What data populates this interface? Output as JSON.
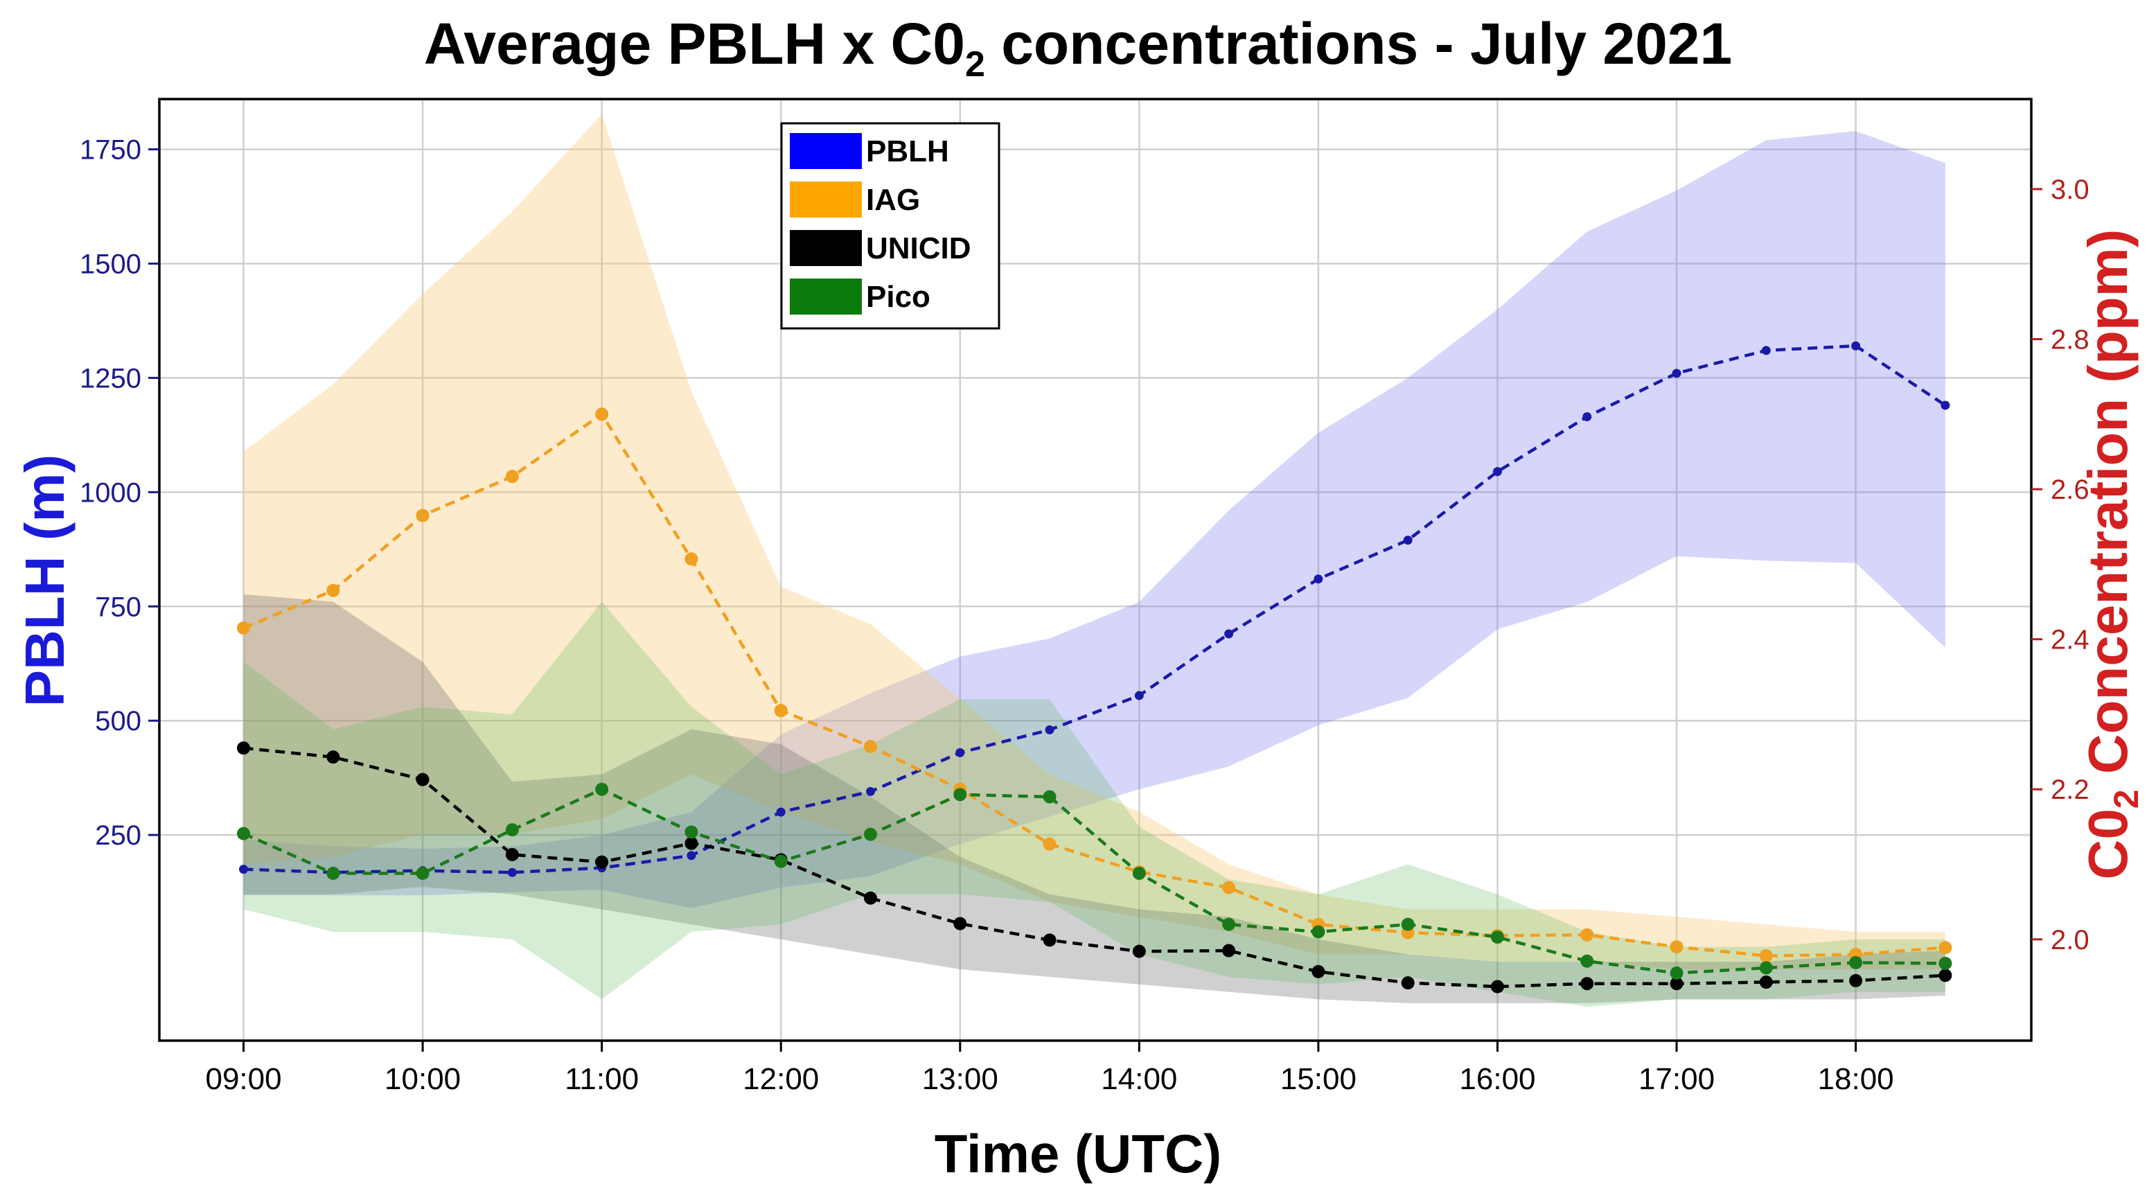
{
  "chart_data": {
    "type": "line",
    "title_parts": [
      "Average PBLH x C0",
      "2",
      "  concentrations -  July 2021"
    ],
    "xlabel": "Time (UTC)",
    "ylabel_left": "PBLH (m)",
    "ylabel_right_parts": [
      "C0",
      "2",
      " Concentration (ppm)"
    ],
    "x_tick_labels": [
      "09:00",
      "10:00",
      "11:00",
      "12:00",
      "13:00",
      "14:00",
      "15:00",
      "16:00",
      "17:00",
      "18:00"
    ],
    "x_ticks": [
      9,
      10,
      11,
      12,
      13,
      14,
      15,
      16,
      17,
      18
    ],
    "x": [
      9,
      9.5,
      10,
      10.5,
      11,
      11.5,
      12,
      12.5,
      13,
      13.5,
      14,
      14.5,
      15,
      15.5,
      16,
      16.5,
      17,
      17.5,
      18,
      18.5
    ],
    "xlim": [
      8.53,
      18.98
    ],
    "ylim_left": [
      -200,
      1860
    ],
    "ylim_right": [
      1.865,
      3.12
    ],
    "y_ticks_left": [
      250,
      500,
      750,
      1000,
      1250,
      1500,
      1750
    ],
    "y_ticks_right": [
      2.0,
      2.2,
      2.4,
      2.6,
      2.8,
      3.0
    ],
    "y_tick_labels_right": [
      "2.0",
      "2.2",
      "2.4",
      "2.6",
      "2.8",
      "3.0"
    ],
    "grid": true,
    "legend_position": "top-center",
    "series": [
      {
        "name": "PBLH",
        "axis": "left",
        "color": "#1a1aa8",
        "band_color": "#8080f0",
        "band_opacity": 0.32,
        "values": [
          175,
          168,
          172,
          168,
          178,
          205,
          300,
          345,
          430,
          480,
          555,
          690,
          810,
          895,
          1045,
          1165,
          1260,
          1310,
          1320,
          1190
        ],
        "lower": [
          118,
          118,
          118,
          125,
          130,
          90,
          135,
          160,
          230,
          290,
          350,
          400,
          490,
          550,
          700,
          760,
          860,
          850,
          845,
          660
        ],
        "upper": [
          240,
          225,
          220,
          225,
          250,
          300,
          470,
          560,
          640,
          680,
          760,
          960,
          1130,
          1250,
          1400,
          1570,
          1660,
          1770,
          1790,
          1720
        ]
      },
      {
        "name": "IAG",
        "axis": "right",
        "color": "#f0a020",
        "band_color": "#f9c670",
        "band_opacity": 0.35,
        "values": [
          2.415,
          2.465,
          2.565,
          2.617,
          2.7,
          2.507,
          2.305,
          2.257,
          2.2,
          2.127,
          2.09,
          2.069,
          2.02,
          2.009,
          2.005,
          2.006,
          1.99,
          1.978,
          1.98,
          1.989
        ],
        "lower": [
          2.1,
          2.11,
          2.14,
          2.14,
          2.16,
          2.22,
          2.17,
          2.13,
          2.1,
          2.05,
          2.03,
          2.01,
          1.98,
          1.98,
          1.97,
          1.97,
          1.96,
          1.96,
          1.96,
          1.96
        ],
        "upper": [
          2.65,
          2.74,
          2.86,
          2.97,
          3.1,
          2.73,
          2.47,
          2.42,
          2.32,
          2.22,
          2.17,
          2.1,
          2.06,
          2.04,
          2.04,
          2.04,
          2.03,
          2.02,
          2.01,
          2.01
        ]
      },
      {
        "name": "UNICID",
        "axis": "right",
        "color": "#000000",
        "band_color": "#6e6e6e",
        "band_opacity": 0.32,
        "values": [
          2.255,
          2.243,
          2.213,
          2.113,
          2.103,
          2.128,
          2.106,
          2.055,
          2.021,
          1.999,
          1.984,
          1.985,
          1.957,
          1.942,
          1.937,
          1.941,
          1.941,
          1.943,
          1.945,
          1.952
        ],
        "lower": [
          2.06,
          2.06,
          2.07,
          2.06,
          2.04,
          2.02,
          2.0,
          1.98,
          1.96,
          1.95,
          1.94,
          1.93,
          1.92,
          1.915,
          1.915,
          1.915,
          1.92,
          1.92,
          1.92,
          1.925
        ],
        "upper": [
          2.46,
          2.45,
          2.37,
          2.21,
          2.22,
          2.28,
          2.26,
          2.19,
          2.11,
          2.06,
          2.04,
          2.03,
          2.0,
          1.98,
          1.97,
          1.97,
          1.97,
          1.97,
          1.98,
          1.985
        ]
      },
      {
        "name": "Pico",
        "axis": "right",
        "color": "#1a7a1a",
        "band_color": "#59b659",
        "band_opacity": 0.25,
        "values": [
          2.141,
          2.088,
          2.088,
          2.146,
          2.2,
          2.143,
          2.104,
          2.14,
          2.193,
          2.19,
          2.088,
          2.02,
          2.01,
          2.02,
          2.003,
          1.971,
          1.955,
          1.962,
          1.969,
          1.968
        ],
        "lower": [
          2.04,
          2.01,
          2.01,
          2.0,
          1.92,
          2.01,
          2.02,
          2.06,
          2.06,
          2.05,
          1.98,
          1.95,
          1.94,
          1.95,
          1.93,
          1.91,
          1.92,
          1.92,
          1.93,
          1.93
        ],
        "upper": [
          2.37,
          2.28,
          2.31,
          2.3,
          2.45,
          2.31,
          2.22,
          2.26,
          2.32,
          2.32,
          2.15,
          2.08,
          2.06,
          2.1,
          2.06,
          2.01,
          1.99,
          1.99,
          2.0,
          2.0
        ]
      }
    ]
  }
}
